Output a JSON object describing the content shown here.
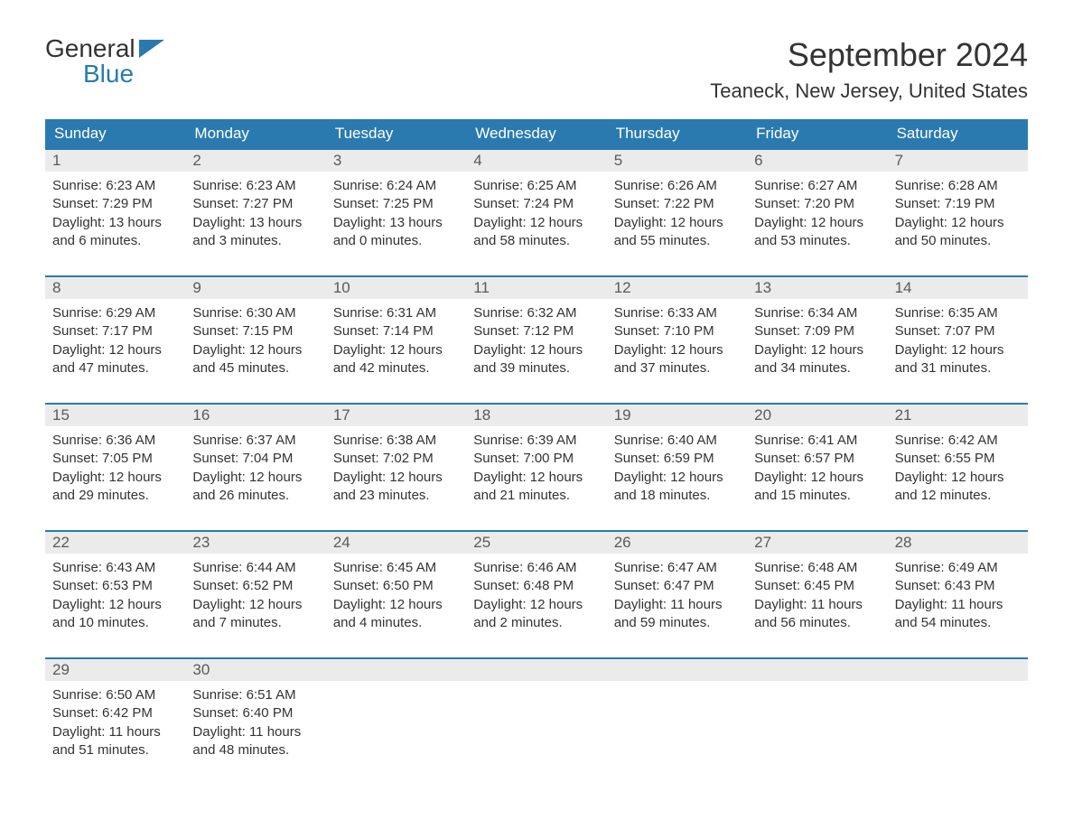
{
  "logo": {
    "word1": "General",
    "word2": "Blue"
  },
  "title": "September 2024",
  "location": "Teaneck, New Jersey, United States",
  "colors": {
    "header_bg": "#2a7ab0",
    "header_text": "#ffffff",
    "daynum_bg": "#ebebeb",
    "daynum_text": "#5a5a5a",
    "body_text": "#333333",
    "row_border": "#2a7ab0",
    "logo_blue": "#2a7ab0",
    "page_bg": "#ffffff"
  },
  "typography": {
    "title_fontsize": 36,
    "location_fontsize": 22,
    "dow_fontsize": 17,
    "daynum_fontsize": 17,
    "body_fontsize": 15,
    "font_family": "Arial"
  },
  "day_labels": [
    "Sunday",
    "Monday",
    "Tuesday",
    "Wednesday",
    "Thursday",
    "Friday",
    "Saturday"
  ],
  "weeks": [
    [
      {
        "n": "1",
        "sr": "Sunrise: 6:23 AM",
        "ss": "Sunset: 7:29 PM",
        "d1": "Daylight: 13 hours",
        "d2": "and 6 minutes."
      },
      {
        "n": "2",
        "sr": "Sunrise: 6:23 AM",
        "ss": "Sunset: 7:27 PM",
        "d1": "Daylight: 13 hours",
        "d2": "and 3 minutes."
      },
      {
        "n": "3",
        "sr": "Sunrise: 6:24 AM",
        "ss": "Sunset: 7:25 PM",
        "d1": "Daylight: 13 hours",
        "d2": "and 0 minutes."
      },
      {
        "n": "4",
        "sr": "Sunrise: 6:25 AM",
        "ss": "Sunset: 7:24 PM",
        "d1": "Daylight: 12 hours",
        "d2": "and 58 minutes."
      },
      {
        "n": "5",
        "sr": "Sunrise: 6:26 AM",
        "ss": "Sunset: 7:22 PM",
        "d1": "Daylight: 12 hours",
        "d2": "and 55 minutes."
      },
      {
        "n": "6",
        "sr": "Sunrise: 6:27 AM",
        "ss": "Sunset: 7:20 PM",
        "d1": "Daylight: 12 hours",
        "d2": "and 53 minutes."
      },
      {
        "n": "7",
        "sr": "Sunrise: 6:28 AM",
        "ss": "Sunset: 7:19 PM",
        "d1": "Daylight: 12 hours",
        "d2": "and 50 minutes."
      }
    ],
    [
      {
        "n": "8",
        "sr": "Sunrise: 6:29 AM",
        "ss": "Sunset: 7:17 PM",
        "d1": "Daylight: 12 hours",
        "d2": "and 47 minutes."
      },
      {
        "n": "9",
        "sr": "Sunrise: 6:30 AM",
        "ss": "Sunset: 7:15 PM",
        "d1": "Daylight: 12 hours",
        "d2": "and 45 minutes."
      },
      {
        "n": "10",
        "sr": "Sunrise: 6:31 AM",
        "ss": "Sunset: 7:14 PM",
        "d1": "Daylight: 12 hours",
        "d2": "and 42 minutes."
      },
      {
        "n": "11",
        "sr": "Sunrise: 6:32 AM",
        "ss": "Sunset: 7:12 PM",
        "d1": "Daylight: 12 hours",
        "d2": "and 39 minutes."
      },
      {
        "n": "12",
        "sr": "Sunrise: 6:33 AM",
        "ss": "Sunset: 7:10 PM",
        "d1": "Daylight: 12 hours",
        "d2": "and 37 minutes."
      },
      {
        "n": "13",
        "sr": "Sunrise: 6:34 AM",
        "ss": "Sunset: 7:09 PM",
        "d1": "Daylight: 12 hours",
        "d2": "and 34 minutes."
      },
      {
        "n": "14",
        "sr": "Sunrise: 6:35 AM",
        "ss": "Sunset: 7:07 PM",
        "d1": "Daylight: 12 hours",
        "d2": "and 31 minutes."
      }
    ],
    [
      {
        "n": "15",
        "sr": "Sunrise: 6:36 AM",
        "ss": "Sunset: 7:05 PM",
        "d1": "Daylight: 12 hours",
        "d2": "and 29 minutes."
      },
      {
        "n": "16",
        "sr": "Sunrise: 6:37 AM",
        "ss": "Sunset: 7:04 PM",
        "d1": "Daylight: 12 hours",
        "d2": "and 26 minutes."
      },
      {
        "n": "17",
        "sr": "Sunrise: 6:38 AM",
        "ss": "Sunset: 7:02 PM",
        "d1": "Daylight: 12 hours",
        "d2": "and 23 minutes."
      },
      {
        "n": "18",
        "sr": "Sunrise: 6:39 AM",
        "ss": "Sunset: 7:00 PM",
        "d1": "Daylight: 12 hours",
        "d2": "and 21 minutes."
      },
      {
        "n": "19",
        "sr": "Sunrise: 6:40 AM",
        "ss": "Sunset: 6:59 PM",
        "d1": "Daylight: 12 hours",
        "d2": "and 18 minutes."
      },
      {
        "n": "20",
        "sr": "Sunrise: 6:41 AM",
        "ss": "Sunset: 6:57 PM",
        "d1": "Daylight: 12 hours",
        "d2": "and 15 minutes."
      },
      {
        "n": "21",
        "sr": "Sunrise: 6:42 AM",
        "ss": "Sunset: 6:55 PM",
        "d1": "Daylight: 12 hours",
        "d2": "and 12 minutes."
      }
    ],
    [
      {
        "n": "22",
        "sr": "Sunrise: 6:43 AM",
        "ss": "Sunset: 6:53 PM",
        "d1": "Daylight: 12 hours",
        "d2": "and 10 minutes."
      },
      {
        "n": "23",
        "sr": "Sunrise: 6:44 AM",
        "ss": "Sunset: 6:52 PM",
        "d1": "Daylight: 12 hours",
        "d2": "and 7 minutes."
      },
      {
        "n": "24",
        "sr": "Sunrise: 6:45 AM",
        "ss": "Sunset: 6:50 PM",
        "d1": "Daylight: 12 hours",
        "d2": "and 4 minutes."
      },
      {
        "n": "25",
        "sr": "Sunrise: 6:46 AM",
        "ss": "Sunset: 6:48 PM",
        "d1": "Daylight: 12 hours",
        "d2": "and 2 minutes."
      },
      {
        "n": "26",
        "sr": "Sunrise: 6:47 AM",
        "ss": "Sunset: 6:47 PM",
        "d1": "Daylight: 11 hours",
        "d2": "and 59 minutes."
      },
      {
        "n": "27",
        "sr": "Sunrise: 6:48 AM",
        "ss": "Sunset: 6:45 PM",
        "d1": "Daylight: 11 hours",
        "d2": "and 56 minutes."
      },
      {
        "n": "28",
        "sr": "Sunrise: 6:49 AM",
        "ss": "Sunset: 6:43 PM",
        "d1": "Daylight: 11 hours",
        "d2": "and 54 minutes."
      }
    ],
    [
      {
        "n": "29",
        "sr": "Sunrise: 6:50 AM",
        "ss": "Sunset: 6:42 PM",
        "d1": "Daylight: 11 hours",
        "d2": "and 51 minutes."
      },
      {
        "n": "30",
        "sr": "Sunrise: 6:51 AM",
        "ss": "Sunset: 6:40 PM",
        "d1": "Daylight: 11 hours",
        "d2": "and 48 minutes."
      },
      {
        "empty": true
      },
      {
        "empty": true
      },
      {
        "empty": true
      },
      {
        "empty": true
      },
      {
        "empty": true
      }
    ]
  ]
}
